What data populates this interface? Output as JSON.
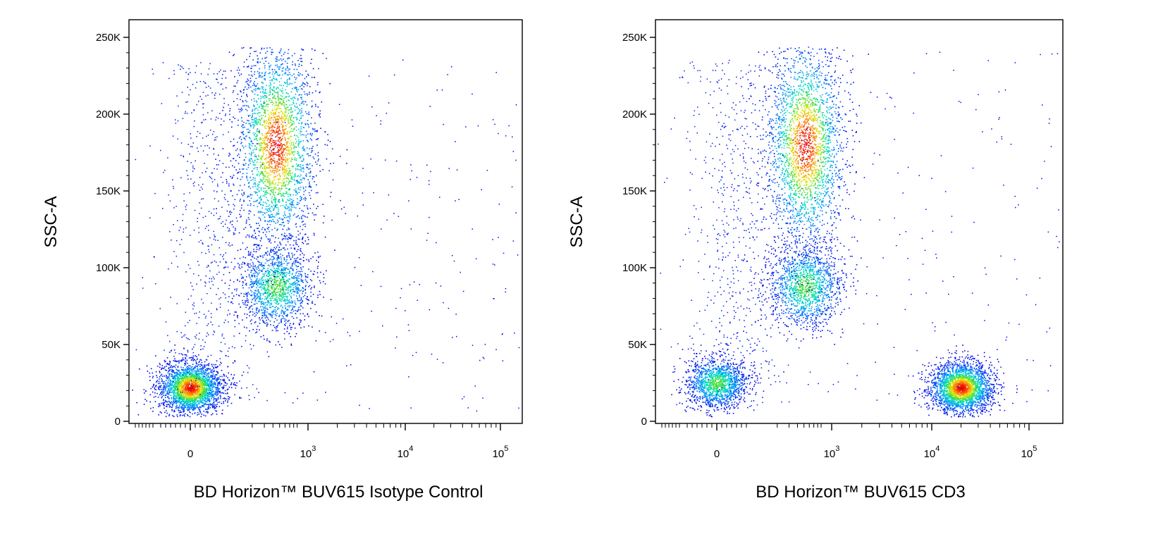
{
  "chart_data": [
    {
      "type": "scatter",
      "style": "density-colored dot plot (blue-cyan-green-yellow-red)",
      "xlabel": "BD Horizon™ BUV615 Isotype Control",
      "ylabel": "SSC-A",
      "xscale": "biexponential",
      "ylim": [
        0,
        250000
      ],
      "yticks": [
        {
          "value": 0,
          "label": "0"
        },
        {
          "value": 50000,
          "label": "50K"
        },
        {
          "value": 100000,
          "label": "100K"
        },
        {
          "value": 150000,
          "label": "150K"
        },
        {
          "value": 200000,
          "label": "200K"
        },
        {
          "value": 250000,
          "label": "250K"
        }
      ],
      "xticks": [
        {
          "value": 0,
          "base": "0",
          "exp": ""
        },
        {
          "value": 1000,
          "base": "10",
          "exp": "3"
        },
        {
          "value": 10000,
          "base": "10",
          "exp": "4"
        },
        {
          "value": 100000,
          "base": "10",
          "exp": "5"
        }
      ],
      "populations": [
        {
          "x_center": 0,
          "y_center": 22000,
          "density": "high"
        },
        {
          "x_center": 150,
          "y_center": 88000,
          "density": "medium"
        },
        {
          "x_center": 150,
          "y_center": 180000,
          "density": "high"
        }
      ]
    },
    {
      "type": "scatter",
      "style": "density-colored dot plot (blue-cyan-green-yellow-red)",
      "xlabel": "BD Horizon™ BUV615 CD3",
      "ylabel": "SSC-A",
      "xscale": "biexponential",
      "ylim": [
        0,
        250000
      ],
      "yticks": [
        {
          "value": 0,
          "label": "0"
        },
        {
          "value": 50000,
          "label": "50K"
        },
        {
          "value": 100000,
          "label": "100K"
        },
        {
          "value": 150000,
          "label": "150K"
        },
        {
          "value": 200000,
          "label": "200K"
        },
        {
          "value": 250000,
          "label": "250K"
        }
      ],
      "xticks": [
        {
          "value": 0,
          "base": "0",
          "exp": ""
        },
        {
          "value": 1000,
          "base": "10",
          "exp": "3"
        },
        {
          "value": 10000,
          "base": "10",
          "exp": "4"
        },
        {
          "value": 100000,
          "base": "10",
          "exp": "5"
        }
      ],
      "populations": [
        {
          "x_center": 0,
          "y_center": 25000,
          "density": "medium"
        },
        {
          "x_center": 20000,
          "y_center": 22000,
          "density": "high"
        },
        {
          "x_center": 200,
          "y_center": 88000,
          "density": "medium"
        },
        {
          "x_center": 200,
          "y_center": 180000,
          "density": "high"
        }
      ]
    }
  ]
}
